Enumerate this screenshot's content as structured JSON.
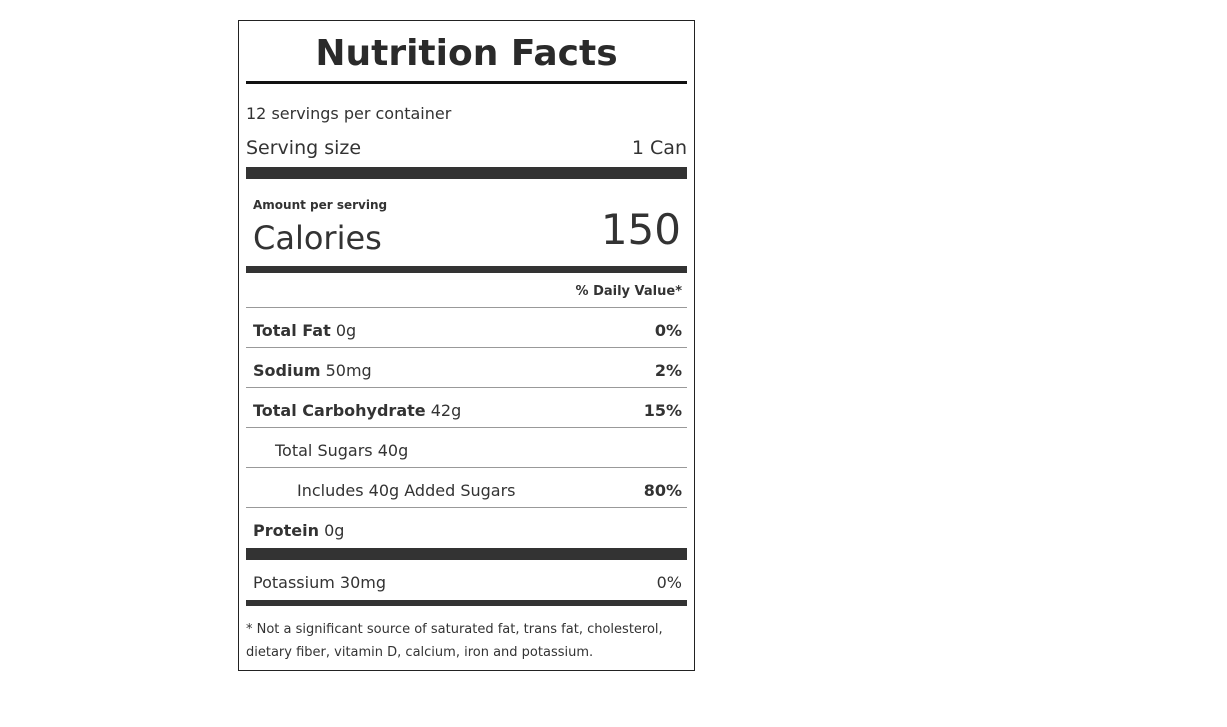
{
  "label": {
    "title": "Nutrition Facts",
    "servings": "12 servings per container",
    "serving_size": {
      "label": "Serving size",
      "value": "1 Can"
    },
    "amount_per_serving": "Amount per serving",
    "calories": {
      "label": "Calories",
      "value": "150"
    },
    "daily_value_header": "% Daily Value*",
    "nutrients": [
      {
        "name": "Total Fat",
        "amount": "0g",
        "daily_value": "0%"
      },
      {
        "name": "Sodium",
        "amount": "50mg",
        "daily_value": "2%"
      },
      {
        "name": "Total Carbohydrate",
        "amount": "42g",
        "daily_value": "15%"
      },
      {
        "name": "Total Sugars",
        "amount": "40g"
      },
      {
        "name": "Includes 40g Added Sugars",
        "daily_value": "80%"
      },
      {
        "name": "Protein",
        "amount": "0g"
      }
    ],
    "potassium": {
      "name": "Potassium",
      "amount": "30mg",
      "daily_value": "0%"
    },
    "footnote": "* Not a significant source of saturated fat, trans fat, cholesterol, dietary fiber, vitamin D, calcium, iron and potassium."
  }
}
